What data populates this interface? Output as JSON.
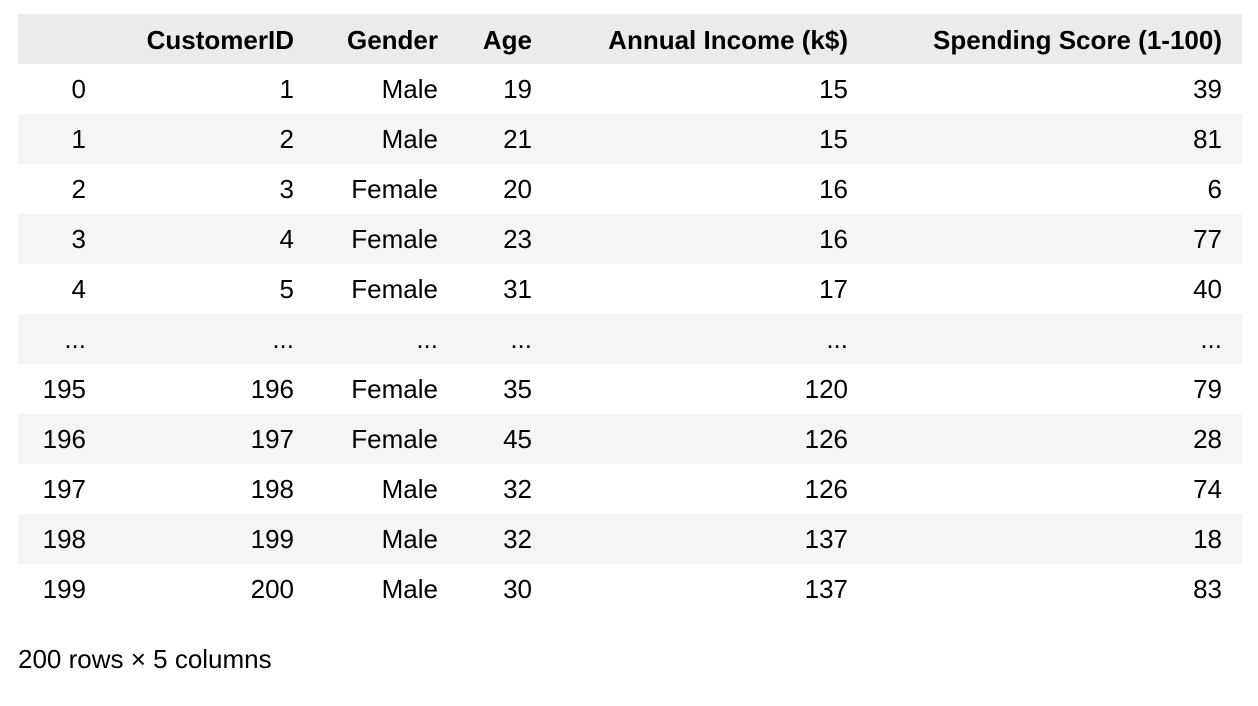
{
  "table": {
    "columns": [
      "",
      "CustomerID",
      "Gender",
      "Age",
      "Annual Income (k$)",
      "Spending Score (1-100)"
    ],
    "rows": [
      [
        "0",
        "1",
        "Male",
        "19",
        "15",
        "39"
      ],
      [
        "1",
        "2",
        "Male",
        "21",
        "15",
        "81"
      ],
      [
        "2",
        "3",
        "Female",
        "20",
        "16",
        "6"
      ],
      [
        "3",
        "4",
        "Female",
        "23",
        "16",
        "77"
      ],
      [
        "4",
        "5",
        "Female",
        "31",
        "17",
        "40"
      ],
      [
        "...",
        "...",
        "...",
        "...",
        "...",
        "..."
      ],
      [
        "195",
        "196",
        "Female",
        "35",
        "120",
        "79"
      ],
      [
        "196",
        "197",
        "Female",
        "45",
        "126",
        "28"
      ],
      [
        "197",
        "198",
        "Male",
        "32",
        "126",
        "74"
      ],
      [
        "198",
        "199",
        "Male",
        "32",
        "137",
        "18"
      ],
      [
        "199",
        "200",
        "Male",
        "30",
        "137",
        "83"
      ]
    ]
  },
  "footer": {
    "summary": "200 rows × 5 columns"
  }
}
